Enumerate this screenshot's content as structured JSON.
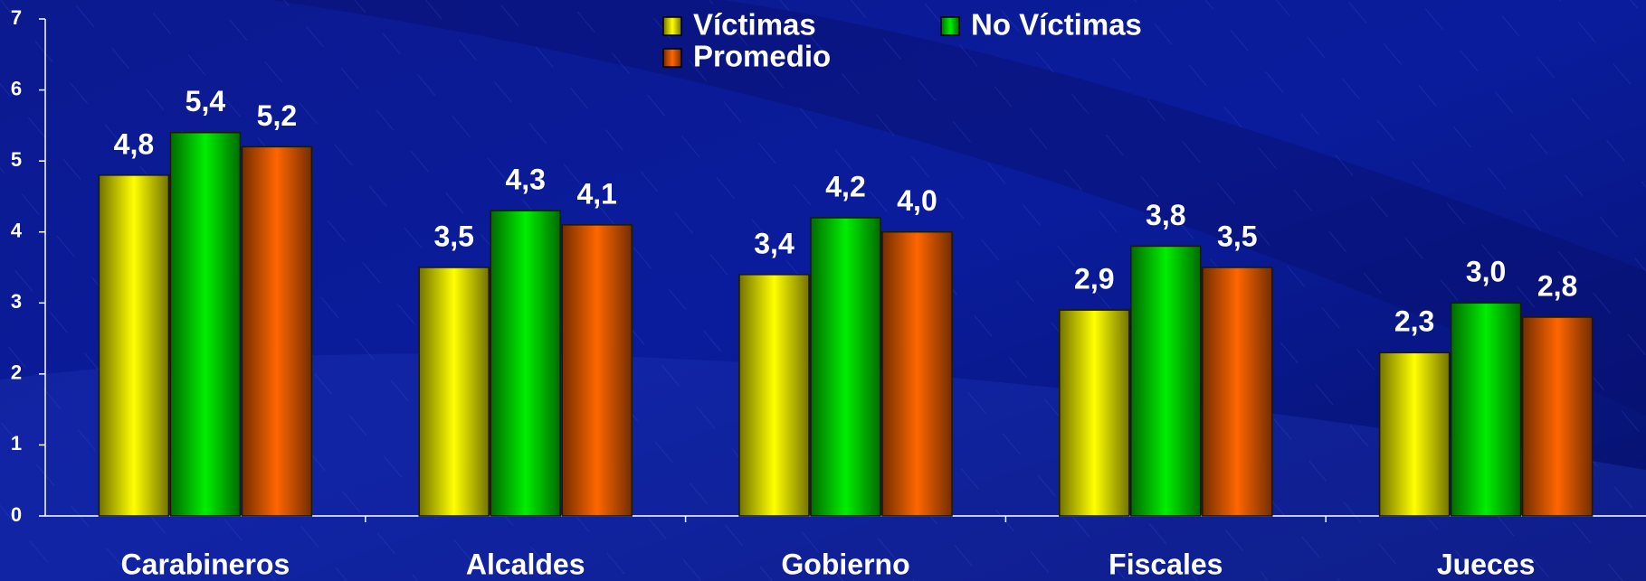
{
  "chart_data": {
    "type": "bar",
    "categories": [
      "Carabineros",
      "Alcaldes",
      "Gobierno",
      "Fiscales",
      "Jueces"
    ],
    "series": [
      {
        "name": "Víctimas",
        "color": "#ffff00",
        "values": [
          4.8,
          3.5,
          3.4,
          2.9,
          2.3
        ],
        "value_labels": [
          "4,8",
          "3,5",
          "3,4",
          "2,9",
          "2,3"
        ]
      },
      {
        "name": "No Víctimas",
        "color": "#00ee00",
        "values": [
          5.4,
          4.3,
          4.2,
          3.8,
          3.0
        ],
        "value_labels": [
          "5,4",
          "4,3",
          "4,2",
          "3,8",
          "3,0"
        ]
      },
      {
        "name": "Promedio",
        "color": "#ff6600",
        "values": [
          5.2,
          4.1,
          4.0,
          3.5,
          2.8
        ],
        "value_labels": [
          "5,2",
          "4,1",
          "4,0",
          "3,5",
          "2,8"
        ]
      }
    ],
    "ylim": [
      0,
      7
    ],
    "yticks": [
      0,
      1,
      2,
      3,
      4,
      5,
      6,
      7
    ],
    "grid": false,
    "legend": "top"
  }
}
